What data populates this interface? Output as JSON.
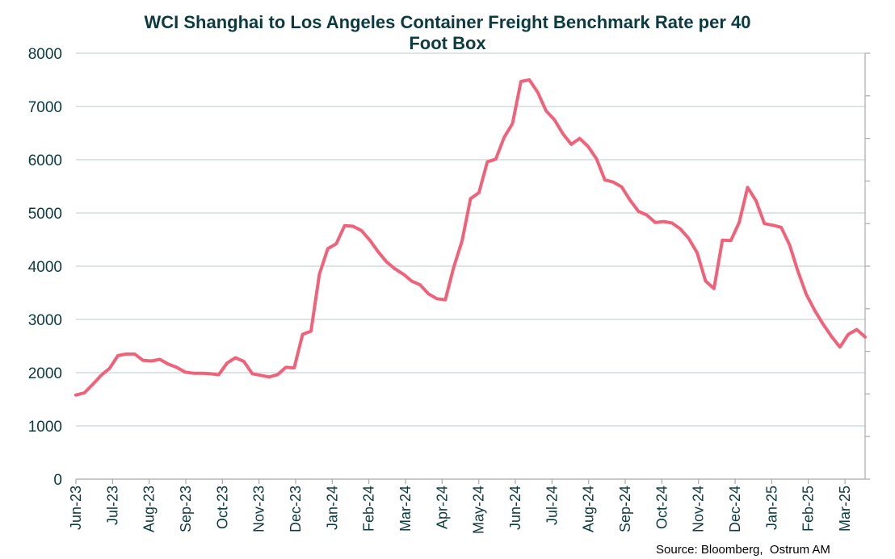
{
  "chart_data": {
    "type": "line",
    "title_lines": [
      "WCI Shanghai to Los Angeles Container Freight Benchmark Rate per 40",
      "Foot Box"
    ],
    "xlabel": "",
    "ylabel": "",
    "ylim": [
      0,
      8000
    ],
    "yticks": [
      0,
      1000,
      2000,
      3000,
      4000,
      5000,
      6000,
      7000,
      8000
    ],
    "x_tick_labels": [
      "Jun-23",
      "Jul-23",
      "Aug-23",
      "Sep-23",
      "Oct-23",
      "Nov-23",
      "Dec-23",
      "Jan-24",
      "Feb-24",
      "Mar-24",
      "Apr-24",
      "May-24",
      "Jun-24",
      "Jul-24",
      "Aug-24",
      "Sep-24",
      "Oct-24",
      "Nov-24",
      "Dec-24",
      "Jan-25",
      "Feb-25",
      "Mar-25"
    ],
    "grid": "horizontal",
    "legend": "none",
    "series": [
      {
        "color": "#f0627a",
        "values": [
          1580,
          1620,
          1780,
          1950,
          2080,
          2320,
          2350,
          2350,
          2230,
          2220,
          2250,
          2160,
          2100,
          2010,
          1990,
          1990,
          1980,
          1960,
          2180,
          2280,
          2210,
          1980,
          1950,
          1920,
          1960,
          2100,
          2090,
          2720,
          2780,
          3850,
          4330,
          4420,
          4760,
          4750,
          4670,
          4490,
          4270,
          4080,
          3950,
          3850,
          3720,
          3650,
          3480,
          3390,
          3370,
          3980,
          4480,
          5270,
          5380,
          5960,
          6010,
          6420,
          6680,
          7470,
          7500,
          7270,
          6920,
          6750,
          6490,
          6290,
          6400,
          6250,
          6020,
          5620,
          5580,
          5490,
          5240,
          5030,
          4960,
          4820,
          4840,
          4810,
          4700,
          4520,
          4250,
          3720,
          3580,
          4490,
          4480,
          4820,
          5480,
          5230,
          4800,
          4770,
          4730,
          4400,
          3900,
          3470,
          3170,
          2910,
          2680,
          2480,
          2720,
          2810,
          2670
        ]
      }
    ],
    "source": "Source: Bloomberg,  Ostrum AM"
  }
}
